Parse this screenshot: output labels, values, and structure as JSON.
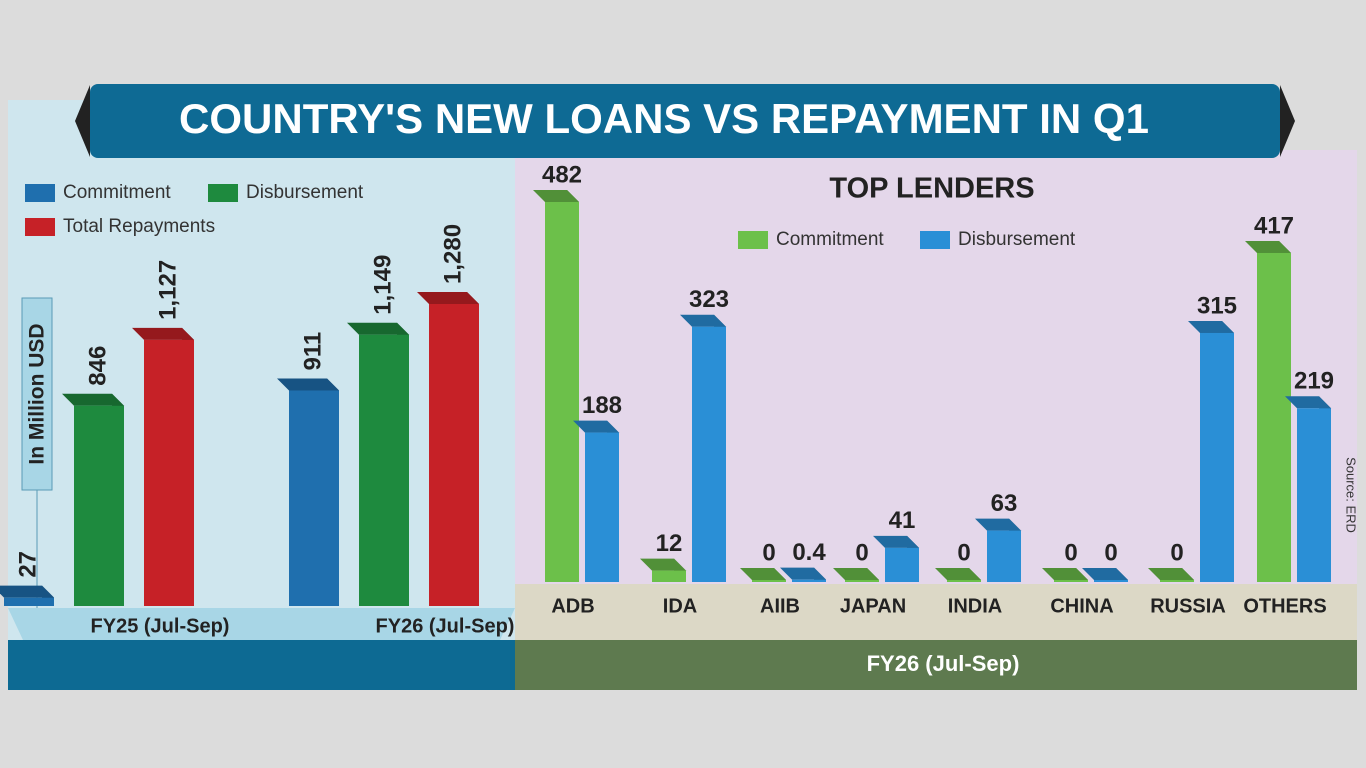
{
  "title": "COUNTRY'S NEW LOANS VS REPAYMENT IN Q1",
  "source": "Source: ERD",
  "chart_data": [
    {
      "type": "bar",
      "y_label": "In Million USD",
      "categories": [
        "FY25 (Jul-Sep)",
        "FY26 (Jul-Sep)"
      ],
      "series": [
        {
          "name": "Commitment",
          "color": "#1f6fae",
          "values": [
            27,
            911
          ],
          "value_labels": [
            "27",
            "911"
          ]
        },
        {
          "name": "Disbursement",
          "color": "#1e8a3e",
          "values": [
            846,
            1149
          ],
          "value_labels": [
            "846",
            "1,149"
          ]
        },
        {
          "name": "Total Repayments",
          "color": "#c62127",
          "values": [
            1127,
            1280
          ],
          "value_labels": [
            "1,127",
            "1,280"
          ]
        }
      ]
    },
    {
      "type": "bar",
      "title": "TOP LENDERS",
      "x_label": "FY26 (Jul-Sep)",
      "categories": [
        "ADB",
        "IDA",
        "AIIB",
        "JAPAN",
        "INDIA",
        "CHINA",
        "RUSSIA",
        "OTHERS"
      ],
      "series": [
        {
          "name": "Commitment",
          "color": "#6cc04a",
          "values": [
            482,
            12,
            0,
            0,
            0,
            0,
            0,
            417
          ]
        },
        {
          "name": "Disbursement",
          "color": "#2a8fd6",
          "values": [
            188,
            323,
            0.4,
            41,
            63,
            0,
            315,
            219
          ]
        }
      ]
    }
  ]
}
